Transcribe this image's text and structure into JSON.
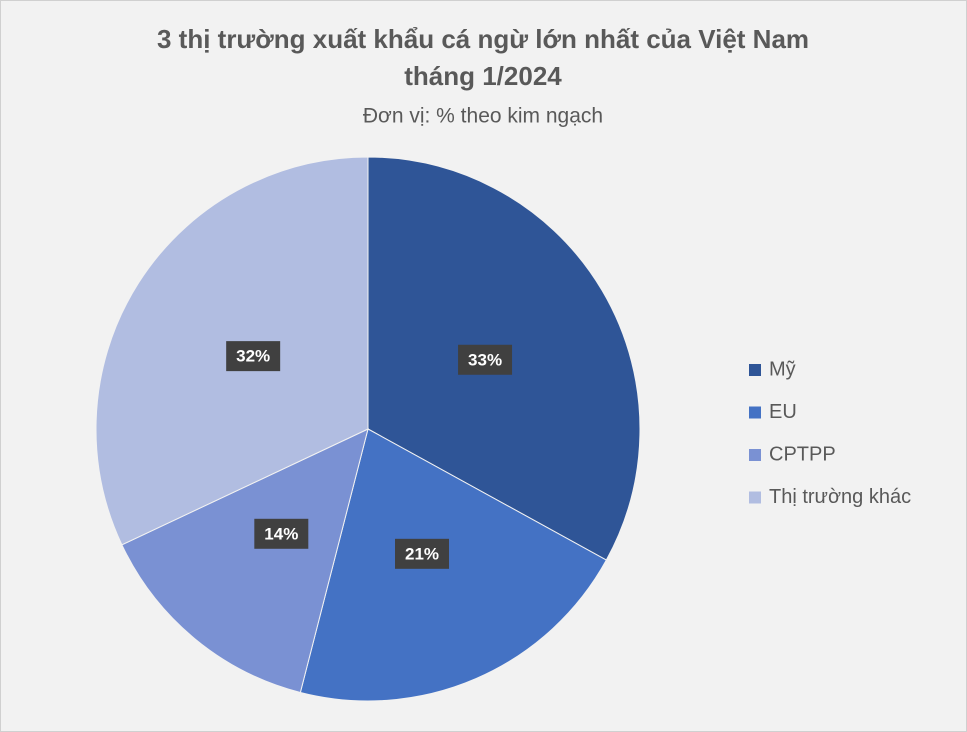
{
  "chart_data": {
    "type": "pie",
    "title": [
      "3 thị trường xuất khẩu cá ngừ lớn nhất của Việt Nam",
      "tháng 1/2024"
    ],
    "subtitle": "Đơn vị: % theo kim ngạch",
    "categories": [
      "Mỹ",
      "EU",
      "CPTPP",
      "Thị trường khác"
    ],
    "values": [
      33,
      21,
      14,
      32
    ],
    "value_labels": [
      "33%",
      "21%",
      "14%",
      "32%"
    ],
    "colors": [
      "#2f5597",
      "#4472c4",
      "#7a91d3",
      "#b1bde1"
    ],
    "legend": "right"
  }
}
